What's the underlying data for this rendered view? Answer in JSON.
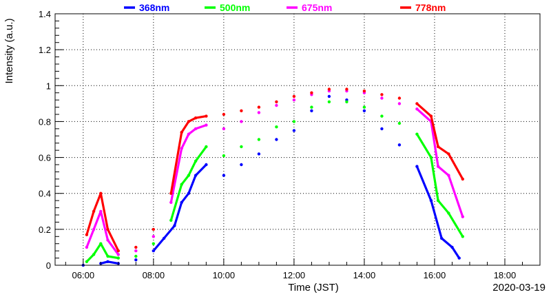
{
  "chart_data": {
    "type": "scatter",
    "xlabel": "Time (JST)",
    "ylabel": "Intensity (a.u.)",
    "date_label": "2020-03-19",
    "xlim": [
      5.2,
      19.0
    ],
    "ylim": [
      0,
      1.4
    ],
    "x_ticks": [
      6,
      8,
      10,
      12,
      14,
      16,
      18
    ],
    "x_tick_labels": [
      "06:00",
      "08:00",
      "10:00",
      "12:00",
      "14:00",
      "16:00",
      "18:00"
    ],
    "y_ticks": [
      0,
      0.2,
      0.4,
      0.6,
      0.8,
      1.0,
      1.2,
      1.4
    ],
    "y_tick_labels": [
      "0",
      "0.2",
      "0.4",
      "0.6",
      "0.8",
      "1",
      "1.2",
      "1.4"
    ],
    "grid": true,
    "legend_position": "top",
    "series": [
      {
        "name": "368nm",
        "color": "#0000ff",
        "points": [
          [
            6.0,
            0.0
          ],
          [
            6.5,
            0.01
          ],
          [
            6.7,
            0.02
          ],
          [
            7.0,
            0.01
          ],
          [
            7.5,
            0.03
          ],
          [
            8.0,
            0.08
          ],
          [
            8.3,
            0.15
          ],
          [
            8.6,
            0.22
          ],
          [
            8.8,
            0.35
          ],
          [
            9.0,
            0.4
          ],
          [
            9.2,
            0.5
          ],
          [
            9.5,
            0.56
          ],
          [
            10.0,
            0.5
          ],
          [
            10.5,
            0.56
          ],
          [
            11.0,
            0.62
          ],
          [
            11.5,
            0.7
          ],
          [
            12.0,
            0.75
          ],
          [
            12.5,
            0.86
          ],
          [
            13.0,
            0.94
          ],
          [
            13.5,
            0.92
          ],
          [
            14.0,
            0.86
          ],
          [
            14.5,
            0.76
          ],
          [
            15.0,
            0.67
          ],
          [
            15.5,
            0.55
          ],
          [
            15.9,
            0.36
          ],
          [
            16.2,
            0.15
          ],
          [
            16.5,
            0.1
          ],
          [
            16.7,
            0.04
          ]
        ]
      },
      {
        "name": "500nm",
        "color": "#00ff00",
        "points": [
          [
            6.1,
            0.02
          ],
          [
            6.3,
            0.06
          ],
          [
            6.5,
            0.12
          ],
          [
            6.7,
            0.05
          ],
          [
            7.0,
            0.04
          ],
          [
            7.5,
            0.05
          ],
          [
            8.0,
            0.12
          ],
          [
            8.5,
            0.25
          ],
          [
            8.8,
            0.45
          ],
          [
            9.0,
            0.5
          ],
          [
            9.2,
            0.58
          ],
          [
            9.5,
            0.66
          ],
          [
            10.0,
            0.61
          ],
          [
            10.5,
            0.66
          ],
          [
            11.0,
            0.7
          ],
          [
            11.5,
            0.77
          ],
          [
            12.0,
            0.8
          ],
          [
            12.5,
            0.88
          ],
          [
            13.0,
            0.91
          ],
          [
            13.5,
            0.91
          ],
          [
            14.0,
            0.88
          ],
          [
            14.5,
            0.83
          ],
          [
            15.0,
            0.79
          ],
          [
            15.5,
            0.73
          ],
          [
            15.9,
            0.6
          ],
          [
            16.1,
            0.36
          ],
          [
            16.4,
            0.29
          ],
          [
            16.8,
            0.16
          ]
        ]
      },
      {
        "name": "675nm",
        "color": "#ff00ff",
        "points": [
          [
            6.1,
            0.1
          ],
          [
            6.3,
            0.2
          ],
          [
            6.5,
            0.3
          ],
          [
            6.7,
            0.14
          ],
          [
            7.0,
            0.06
          ],
          [
            7.5,
            0.08
          ],
          [
            8.0,
            0.16
          ],
          [
            8.5,
            0.35
          ],
          [
            8.8,
            0.65
          ],
          [
            9.0,
            0.73
          ],
          [
            9.2,
            0.76
          ],
          [
            9.5,
            0.78
          ],
          [
            10.0,
            0.76
          ],
          [
            10.5,
            0.8
          ],
          [
            11.0,
            0.85
          ],
          [
            11.5,
            0.89
          ],
          [
            12.0,
            0.92
          ],
          [
            12.5,
            0.95
          ],
          [
            13.0,
            0.97
          ],
          [
            13.5,
            0.97
          ],
          [
            14.0,
            0.96
          ],
          [
            14.5,
            0.93
          ],
          [
            15.0,
            0.9
          ],
          [
            15.5,
            0.87
          ],
          [
            15.9,
            0.8
          ],
          [
            16.1,
            0.55
          ],
          [
            16.4,
            0.5
          ],
          [
            16.8,
            0.27
          ]
        ]
      },
      {
        "name": "778nm",
        "color": "#ff0000",
        "points": [
          [
            6.1,
            0.17
          ],
          [
            6.3,
            0.3
          ],
          [
            6.5,
            0.4
          ],
          [
            6.7,
            0.2
          ],
          [
            7.0,
            0.08
          ],
          [
            7.5,
            0.1
          ],
          [
            8.0,
            0.2
          ],
          [
            8.5,
            0.4
          ],
          [
            8.8,
            0.74
          ],
          [
            9.0,
            0.8
          ],
          [
            9.2,
            0.82
          ],
          [
            9.5,
            0.83
          ],
          [
            10.0,
            0.84
          ],
          [
            10.5,
            0.86
          ],
          [
            11.0,
            0.88
          ],
          [
            11.5,
            0.91
          ],
          [
            12.0,
            0.94
          ],
          [
            12.5,
            0.96
          ],
          [
            13.0,
            0.98
          ],
          [
            13.5,
            0.98
          ],
          [
            14.0,
            0.97
          ],
          [
            14.5,
            0.95
          ],
          [
            15.0,
            0.93
          ],
          [
            15.5,
            0.9
          ],
          [
            15.9,
            0.83
          ],
          [
            16.1,
            0.66
          ],
          [
            16.4,
            0.62
          ],
          [
            16.8,
            0.48
          ]
        ]
      }
    ]
  }
}
